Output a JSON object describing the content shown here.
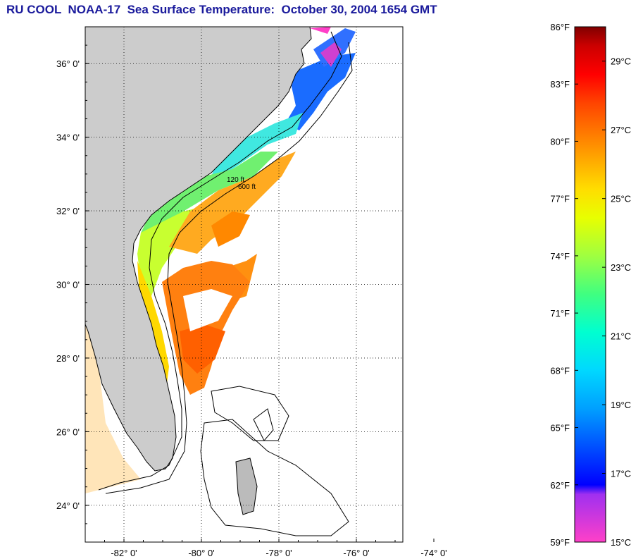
{
  "title": "RU COOL  NOAA-17  Sea Surface Temperature:  October 30, 2004 1654 GMT",
  "chart_data": {
    "type": "heatmap",
    "title": "RU COOL  NOAA-17  Sea Surface Temperature:  October 30, 2004 1654 GMT",
    "xlim": [
      -83.0,
      -74.8
    ],
    "ylim": [
      23.0,
      37.0
    ],
    "x_ticks": [
      {
        "value": -82,
        "label": "-82° 0'"
      },
      {
        "value": -80,
        "label": "-80° 0'"
      },
      {
        "value": -78,
        "label": "-78° 0'"
      },
      {
        "value": -76,
        "label": "-76° 0'"
      },
      {
        "value": -74,
        "label": "-74° 0'"
      }
    ],
    "y_ticks": [
      {
        "value": 24,
        "label": "24° 0'"
      },
      {
        "value": 26,
        "label": "26° 0'"
      },
      {
        "value": 28,
        "label": "28° 0'"
      },
      {
        "value": 30,
        "label": "30° 0'"
      },
      {
        "value": 32,
        "label": "32° 0'"
      },
      {
        "value": 34,
        "label": "34° 0'"
      },
      {
        "value": 36,
        "label": "36° 0'"
      }
    ],
    "grid": true,
    "contour_labels": [
      "120 ft",
      "600 ft"
    ],
    "colorbar": {
      "range_f": [
        59,
        86
      ],
      "range_c": [
        15,
        30
      ],
      "fahrenheit_ticks": [
        {
          "value": 86,
          "label": "86°F"
        },
        {
          "value": 83,
          "label": "83°F"
        },
        {
          "value": 80,
          "label": "80°F"
        },
        {
          "value": 77,
          "label": "77°F"
        },
        {
          "value": 74,
          "label": "74°F"
        },
        {
          "value": 71,
          "label": "71°F"
        },
        {
          "value": 68,
          "label": "68°F"
        },
        {
          "value": 65,
          "label": "65°F"
        },
        {
          "value": 62,
          "label": "62°F"
        },
        {
          "value": 59,
          "label": "59°F"
        }
      ],
      "celsius_ticks": [
        {
          "value": 29,
          "label": "29°C"
        },
        {
          "value": 27,
          "label": "27°C"
        },
        {
          "value": 25,
          "label": "25°C"
        },
        {
          "value": 23,
          "label": "23°C"
        },
        {
          "value": 21,
          "label": "21°C"
        },
        {
          "value": 19,
          "label": "19°C"
        },
        {
          "value": 17,
          "label": "17°C"
        },
        {
          "value": 15,
          "label": "15°C"
        }
      ],
      "stops": [
        {
          "f": 59,
          "color": "#ff40c8"
        },
        {
          "f": 61.5,
          "color": "#a030f0"
        },
        {
          "f": 62,
          "color": "#0000ff"
        },
        {
          "f": 64,
          "color": "#0050ff"
        },
        {
          "f": 66,
          "color": "#00a0ff"
        },
        {
          "f": 68,
          "color": "#00d8ff"
        },
        {
          "f": 70,
          "color": "#00ffd0"
        },
        {
          "f": 72,
          "color": "#40ff80"
        },
        {
          "f": 74,
          "color": "#a0ff40"
        },
        {
          "f": 76,
          "color": "#e8ff00"
        },
        {
          "f": 77.5,
          "color": "#ffdd00"
        },
        {
          "f": 79,
          "color": "#ffaa00"
        },
        {
          "f": 80.5,
          "color": "#ff7700"
        },
        {
          "f": 82,
          "color": "#ff4400"
        },
        {
          "f": 83.5,
          "color": "#ff0000"
        },
        {
          "f": 85,
          "color": "#cc0000"
        },
        {
          "f": 86,
          "color": "#800000"
        }
      ]
    },
    "land_color": "#cccccc"
  }
}
